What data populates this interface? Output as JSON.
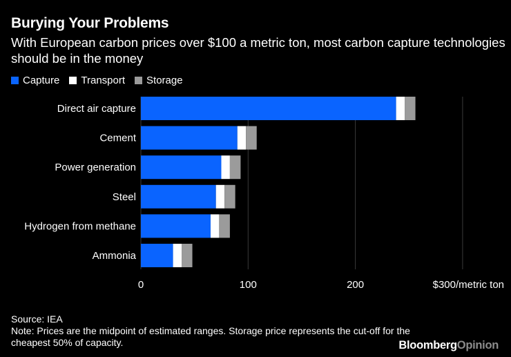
{
  "header": {
    "title": "Burying Your Problems",
    "subtitle": "With European carbon prices over $100 a metric ton, most carbon capture technologies should be in the money"
  },
  "colors": {
    "capture": "#0a64ff",
    "transport": "#ffffff",
    "storage": "#9b9b9b",
    "background": "#000000"
  },
  "chart_data": {
    "type": "bar",
    "orientation": "horizontal",
    "stacked": true,
    "title": "Burying Your Problems",
    "categories": [
      "Direct air capture",
      "Cement",
      "Power generation",
      "Steel",
      "Hydrogen from methane",
      "Ammonia"
    ],
    "series": [
      {
        "name": "Capture",
        "values": [
          238,
          90,
          75,
          70,
          65,
          30
        ]
      },
      {
        "name": "Transport",
        "values": [
          8,
          8,
          8,
          8,
          8,
          8
        ]
      },
      {
        "name": "Storage",
        "values": [
          10,
          10,
          10,
          10,
          10,
          10
        ]
      }
    ],
    "xlim": [
      0,
      300
    ],
    "xticks": [
      0,
      100,
      200,
      300
    ],
    "xtick_labels": [
      "0",
      "100",
      "200",
      "$300/metric ton"
    ],
    "legend_position": "top-left"
  },
  "footer": {
    "source": "Source: IEA",
    "note": "Note: Prices are the midpoint of estimated ranges. Storage price represents the cut-off for the cheapest 50% of capacity.",
    "brand_part1": "Bloomberg",
    "brand_part2": "Opinion"
  }
}
